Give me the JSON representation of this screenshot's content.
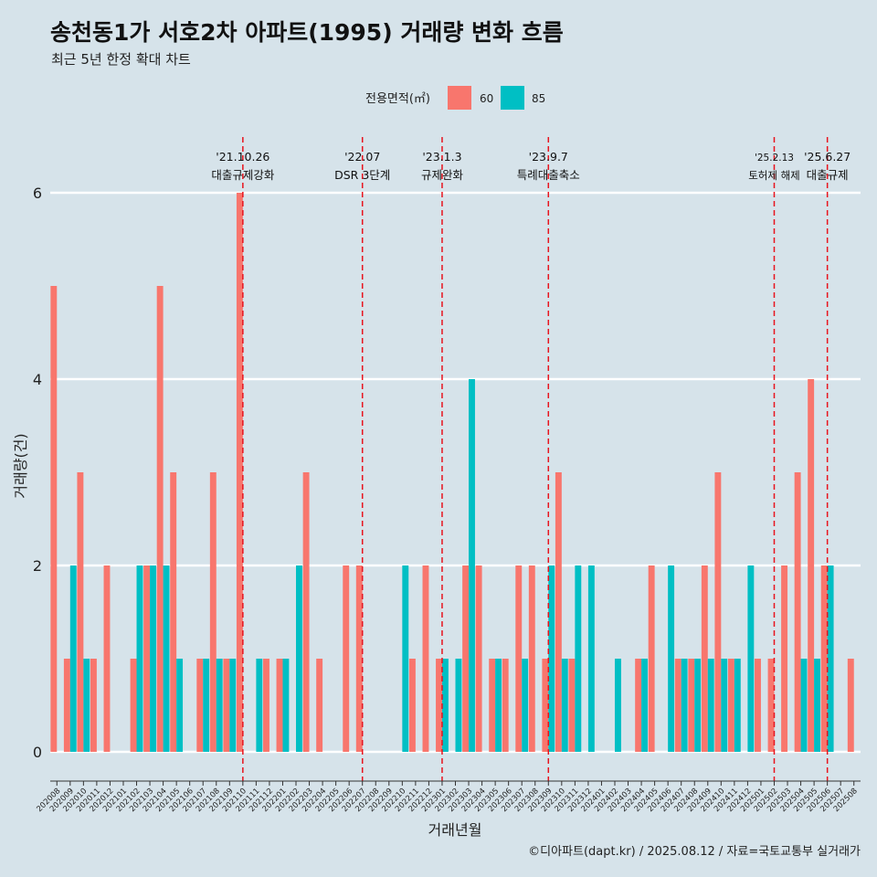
{
  "title": "송천동1가 서호2차 아파트(1995) 거래량 변화 흐름",
  "subtitle": "최근 5년 한정 확대 차트",
  "caption": "©디아파트(dapt.kr) / 2025.08.12 / 자료=국토교통부 실거래가",
  "colors": {
    "background": "#d6e3ea",
    "s60": "#f8766d",
    "s85": "#00bfc4",
    "event_line": "#e8141e",
    "grid": "#ffffff"
  },
  "chart_data": {
    "type": "bar",
    "title": "송천동1가 서호2차 아파트(1995) 거래량 변화 흐름",
    "subtitle": "최근 5년 한정 확대 차트",
    "xlabel": "거래년월",
    "ylabel": "거래량(건)",
    "ylim": [
      0,
      6
    ],
    "yticks": [
      0,
      2,
      4,
      6
    ],
    "grid": true,
    "legend": {
      "title": "전용면적(㎡)",
      "position": "top"
    },
    "categories": [
      "202008",
      "202009",
      "202010",
      "202011",
      "202012",
      "202101",
      "202102",
      "202103",
      "202104",
      "202105",
      "202106",
      "202107",
      "202108",
      "202109",
      "202110",
      "202111",
      "202112",
      "202201",
      "202202",
      "202203",
      "202204",
      "202205",
      "202206",
      "202207",
      "202208",
      "202209",
      "202210",
      "202211",
      "202212",
      "202301",
      "202302",
      "202303",
      "202304",
      "202305",
      "202306",
      "202307",
      "202308",
      "202309",
      "202310",
      "202311",
      "202312",
      "202401",
      "202402",
      "202403",
      "202404",
      "202405",
      "202406",
      "202407",
      "202408",
      "202409",
      "202410",
      "202411",
      "202412",
      "202501",
      "202502",
      "202503",
      "202504",
      "202505",
      "202506",
      "202507",
      "202508"
    ],
    "series": [
      {
        "name": "60",
        "color": "#f8766d",
        "values": [
          5,
          1,
          3,
          1,
          2,
          0,
          1,
          2,
          5,
          3,
          0,
          1,
          3,
          1,
          6,
          0,
          1,
          1,
          0,
          3,
          1,
          0,
          2,
          2,
          0,
          0,
          0,
          1,
          2,
          1,
          0,
          2,
          2,
          1,
          1,
          2,
          2,
          1,
          3,
          1,
          0,
          0,
          0,
          0,
          1,
          2,
          0,
          1,
          1,
          2,
          3,
          1,
          0,
          1,
          1,
          2,
          3,
          4,
          2,
          0,
          1
        ]
      },
      {
        "name": "85",
        "color": "#00bfc4",
        "values": [
          0,
          2,
          1,
          0,
          0,
          0,
          2,
          2,
          2,
          1,
          0,
          1,
          1,
          1,
          0,
          1,
          0,
          1,
          2,
          0,
          0,
          0,
          0,
          0,
          0,
          0,
          2,
          0,
          0,
          1,
          1,
          4,
          0,
          1,
          0,
          1,
          0,
          2,
          1,
          2,
          2,
          0,
          1,
          0,
          1,
          0,
          2,
          1,
          1,
          1,
          1,
          1,
          2,
          0,
          0,
          0,
          1,
          1,
          2,
          0,
          0
        ]
      }
    ],
    "events": [
      {
        "date": "'21.10.26",
        "label": "대출규제강화",
        "month_index": 14,
        "offset": 0.0
      },
      {
        "date": "'22.07",
        "label": "DSR 3단계",
        "month_index": 23,
        "offset": 0.0
      },
      {
        "date": "'23.1.3",
        "label": "규제완화",
        "month_index": 29,
        "offset": 0.0
      },
      {
        "date": "'23.9.7",
        "label": "특례대출축소",
        "month_index": 37,
        "offset": 0.0
      },
      {
        "date": "'25.2.13",
        "label": "토허제 해제",
        "month_index": 54,
        "offset": 0.0
      },
      {
        "date": "'25.6.27",
        "label": "대출규제",
        "month_index": 58,
        "offset": 0.0
      }
    ]
  }
}
